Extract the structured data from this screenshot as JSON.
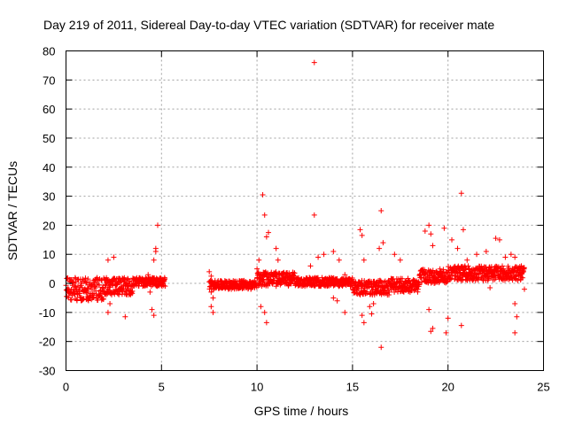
{
  "chart_data": {
    "type": "scatter",
    "title": "Day 219 of 2011, Sidereal Day-to-day VTEC variation (SDTVAR) for receiver mate",
    "xlabel": "GPS time / hours",
    "ylabel": "SDTVAR / TECUs",
    "xlim": [
      0,
      25
    ],
    "ylim": [
      -30,
      80
    ],
    "xticks": [
      0,
      5,
      10,
      15,
      20,
      25
    ],
    "yticks": [
      -30,
      -20,
      -10,
      0,
      10,
      20,
      30,
      40,
      50,
      60,
      70,
      80
    ],
    "grid": true,
    "marker": "+",
    "color": "#ff0000",
    "series": [
      {
        "name": "SDTVAR",
        "dense_bands": [
          {
            "x_start": 0.0,
            "x_end": 2.0,
            "y_low": -6,
            "y_high": 2
          },
          {
            "x_start": 2.0,
            "x_end": 3.5,
            "y_low": -4,
            "y_high": 2
          },
          {
            "x_start": 3.5,
            "x_end": 5.2,
            "y_low": -1,
            "y_high": 2
          },
          {
            "x_start": 7.5,
            "x_end": 10.0,
            "y_low": -2,
            "y_high": 1
          },
          {
            "x_start": 10.0,
            "x_end": 12.0,
            "y_low": -1,
            "y_high": 4
          },
          {
            "x_start": 12.0,
            "x_end": 15.0,
            "y_low": -1,
            "y_high": 2
          },
          {
            "x_start": 15.0,
            "x_end": 17.0,
            "y_low": -4,
            "y_high": 1
          },
          {
            "x_start": 17.0,
            "x_end": 18.5,
            "y_low": -3,
            "y_high": 2
          },
          {
            "x_start": 18.5,
            "x_end": 20.0,
            "y_low": 0,
            "y_high": 5
          },
          {
            "x_start": 20.0,
            "x_end": 24.0,
            "y_low": 1,
            "y_high": 6
          }
        ],
        "points": [
          [
            13.0,
            76
          ],
          [
            13.0,
            23.5
          ],
          [
            10.3,
            30.5
          ],
          [
            10.4,
            23.5
          ],
          [
            10.6,
            17.5
          ],
          [
            10.5,
            16
          ],
          [
            20.7,
            31
          ],
          [
            20.8,
            18.5
          ],
          [
            16.5,
            25
          ],
          [
            4.8,
            20
          ],
          [
            4.7,
            12
          ],
          [
            4.6,
            8
          ],
          [
            2.2,
            8
          ],
          [
            2.5,
            9
          ],
          [
            2.3,
            -7
          ],
          [
            2.2,
            -10
          ],
          [
            3.1,
            -11.5
          ],
          [
            2.0,
            -3
          ],
          [
            4.4,
            -3
          ],
          [
            4.5,
            -9
          ],
          [
            4.6,
            -11
          ],
          [
            4.7,
            11
          ],
          [
            4.3,
            3
          ],
          [
            7.5,
            4
          ],
          [
            7.6,
            2.5
          ],
          [
            7.6,
            -3
          ],
          [
            7.7,
            -5
          ],
          [
            7.6,
            -8
          ],
          [
            7.7,
            -10
          ],
          [
            10.2,
            -8
          ],
          [
            10.4,
            -10
          ],
          [
            10.5,
            -13.5
          ],
          [
            10.1,
            8
          ],
          [
            10.0,
            5
          ],
          [
            11.0,
            12
          ],
          [
            11.1,
            8
          ],
          [
            12.8,
            6
          ],
          [
            13.2,
            9
          ],
          [
            13.5,
            10
          ],
          [
            14.0,
            11
          ],
          [
            14.3,
            8
          ],
          [
            14.6,
            3
          ],
          [
            14.0,
            -5
          ],
          [
            14.2,
            -6
          ],
          [
            14.6,
            -10
          ],
          [
            15.4,
            18.5
          ],
          [
            15.5,
            16.5
          ],
          [
            15.6,
            8
          ],
          [
            15.5,
            -11
          ],
          [
            15.6,
            -13.5
          ],
          [
            15.9,
            -8
          ],
          [
            16.0,
            -10.5
          ],
          [
            16.1,
            -7
          ],
          [
            16.5,
            -22
          ],
          [
            16.6,
            14
          ],
          [
            16.4,
            12
          ],
          [
            17.2,
            10
          ],
          [
            17.5,
            8
          ],
          [
            18.8,
            18
          ],
          [
            19.0,
            20
          ],
          [
            19.1,
            17
          ],
          [
            19.2,
            13
          ],
          [
            19.0,
            -9
          ],
          [
            19.1,
            -16.5
          ],
          [
            19.2,
            -15.5
          ],
          [
            19.8,
            19
          ],
          [
            20.0,
            -12
          ],
          [
            19.9,
            -17
          ],
          [
            20.2,
            15
          ],
          [
            20.5,
            12
          ],
          [
            20.7,
            -14.5
          ],
          [
            21.0,
            8
          ],
          [
            21.5,
            10
          ],
          [
            22.0,
            11
          ],
          [
            22.2,
            -1.5
          ],
          [
            22.5,
            15.5
          ],
          [
            22.7,
            15
          ],
          [
            23.0,
            9
          ],
          [
            23.3,
            10
          ],
          [
            23.5,
            9
          ],
          [
            23.5,
            -7
          ],
          [
            23.6,
            -11.5
          ],
          [
            23.5,
            -17
          ],
          [
            23.8,
            5
          ],
          [
            24.0,
            -2
          ]
        ]
      }
    ]
  }
}
